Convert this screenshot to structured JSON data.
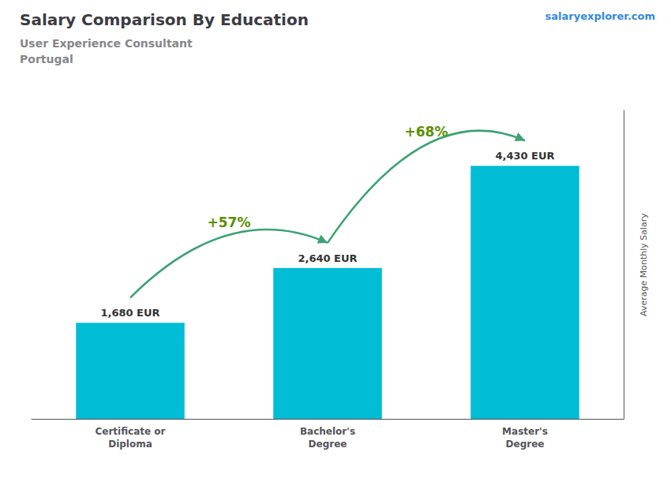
{
  "chart_data": {
    "type": "bar",
    "title": "Salary Comparison By Education",
    "subtitle": [
      "User Experience Consultant",
      "Portugal"
    ],
    "source": "salaryexplorer.com",
    "ylabel": "Average Monthly Salary",
    "categories": [
      "Certificate or\nDiploma",
      "Bachelor's\nDegree",
      "Master's\nDegree"
    ],
    "values": [
      1680,
      2640,
      4430
    ],
    "value_labels": [
      "1,680 EUR",
      "2,640 EUR",
      "4,430 EUR"
    ],
    "data_labels": true,
    "annotations": [
      "+57%",
      "+68%"
    ],
    "color": "#00bcd4",
    "ylim": [
      0,
      5400
    ],
    "tick_labels": "x",
    "grid": false
  }
}
